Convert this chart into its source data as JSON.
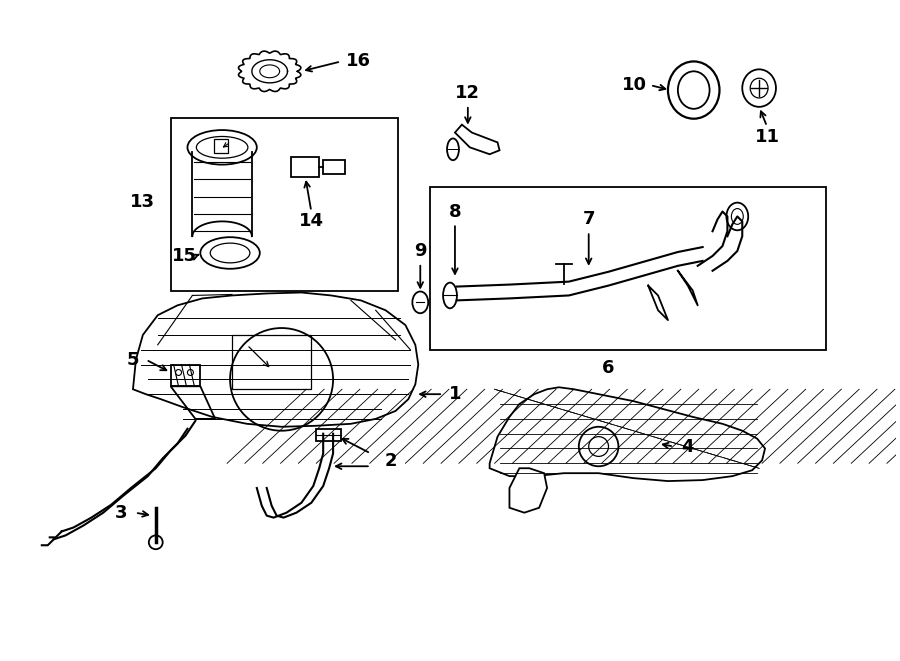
{
  "background_color": "#ffffff",
  "line_color": "#000000",
  "label_fontsize": 12,
  "fig_width": 9.0,
  "fig_height": 6.61,
  "dpi": 100
}
